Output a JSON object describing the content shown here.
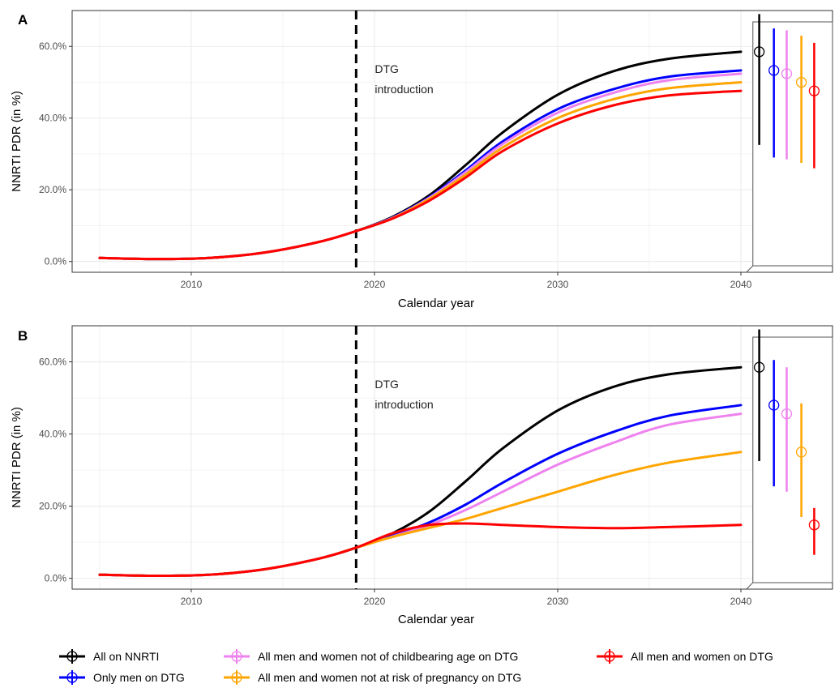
{
  "colors": {
    "all_on_nnrti": "#000000",
    "only_men": "#0000ff",
    "not_childbearing": "#ee82ee",
    "not_at_risk": "#ffa500",
    "all_on_dtg": "#ff0000",
    "grid": "#ebebeb",
    "panel_border": "#333333"
  },
  "legend": {
    "items": [
      {
        "label": "All on NNRTI",
        "color_key": "all_on_nnrti"
      },
      {
        "label": "All men and women not of childbearing age on DTG",
        "color_key": "not_childbearing"
      },
      {
        "label": "All men and women on DTG",
        "color_key": "all_on_dtg"
      },
      {
        "label": "Only men on DTG",
        "color_key": "only_men"
      },
      {
        "label": "All men and women not at risk of pregnancy on DTG",
        "color_key": "not_at_risk"
      }
    ]
  },
  "chart_data": [
    {
      "type": "line",
      "panel": "A",
      "xlabel": "Calendar year",
      "ylabel": "NNRTI PDR (in %)",
      "xlim": [
        2003.5,
        2045
      ],
      "ylim": [
        -3,
        70
      ],
      "x_ticks": [
        2010,
        2020,
        2030,
        2040
      ],
      "x_tick_labels": [
        "2010",
        "2020",
        "2030",
        "2040"
      ],
      "y_ticks": [
        0,
        20,
        40,
        60
      ],
      "y_tick_labels": [
        "0.0%",
        "20.0%",
        "40.0%",
        "60.0%"
      ],
      "grid": true,
      "vline": {
        "x": 2019,
        "label_line1": "DTG",
        "label_line2": "introduction"
      },
      "x": [
        2005,
        2008,
        2011,
        2014,
        2017,
        2019,
        2021,
        2023,
        2025,
        2027,
        2030,
        2033,
        2036,
        2040
      ],
      "series": [
        {
          "name": "All on NNRTI",
          "color_key": "all_on_nnrti",
          "values": [
            1.0,
            0.7,
            1.0,
            2.5,
            5.5,
            8.5,
            12.5,
            18.5,
            27.0,
            36.0,
            46.5,
            53.0,
            56.5,
            58.5
          ],
          "end": {
            "mean": 58.5,
            "low": 32.5,
            "high": 69
          }
        },
        {
          "name": "Only men on DTG",
          "color_key": "only_men",
          "values": [
            1.0,
            0.7,
            1.0,
            2.5,
            5.5,
            8.5,
            12.3,
            18.0,
            25.5,
            33.5,
            42.5,
            48.0,
            51.5,
            53.3
          ],
          "end": {
            "mean": 53.3,
            "low": 29,
            "high": 65
          }
        },
        {
          "name": "All men and women not of childbearing age on DTG",
          "color_key": "not_childbearing",
          "values": [
            1.0,
            0.7,
            1.0,
            2.5,
            5.5,
            8.5,
            12.2,
            17.8,
            25.0,
            32.8,
            41.5,
            47.0,
            50.5,
            52.4
          ],
          "end": {
            "mean": 52.4,
            "low": 28.5,
            "high": 64.5
          }
        },
        {
          "name": "All men and women not at risk of pregnancy on DTG",
          "color_key": "not_at_risk",
          "values": [
            1.0,
            0.7,
            1.0,
            2.5,
            5.5,
            8.5,
            12.1,
            17.5,
            24.3,
            31.8,
            40.0,
            45.2,
            48.3,
            50.0
          ],
          "end": {
            "mean": 50.0,
            "low": 27.5,
            "high": 63
          }
        },
        {
          "name": "All men and women on DTG",
          "color_key": "all_on_dtg",
          "values": [
            1.0,
            0.7,
            1.0,
            2.5,
            5.5,
            8.5,
            12.0,
            17.0,
            23.5,
            30.8,
            38.5,
            43.5,
            46.3,
            47.6
          ],
          "end": {
            "mean": 47.6,
            "low": 26,
            "high": 61
          }
        }
      ]
    },
    {
      "type": "line",
      "panel": "B",
      "xlabel": "Calendar year",
      "ylabel": "NNRTI PDR (in %)",
      "xlim": [
        2003.5,
        2045
      ],
      "ylim": [
        -3,
        70
      ],
      "x_ticks": [
        2010,
        2020,
        2030,
        2040
      ],
      "x_tick_labels": [
        "2010",
        "2020",
        "2030",
        "2040"
      ],
      "y_ticks": [
        0,
        20,
        40,
        60
      ],
      "y_tick_labels": [
        "0.0%",
        "20.0%",
        "40.0%",
        "60.0%"
      ],
      "grid": true,
      "vline": {
        "x": 2019,
        "label_line1": "DTG",
        "label_line2": "introduction"
      },
      "x": [
        2005,
        2008,
        2011,
        2014,
        2017,
        2019,
        2021,
        2023,
        2025,
        2027,
        2030,
        2033,
        2036,
        2040
      ],
      "series": [
        {
          "name": "All on NNRTI",
          "color_key": "all_on_nnrti",
          "values": [
            1.0,
            0.7,
            1.0,
            2.5,
            5.5,
            8.5,
            12.5,
            18.5,
            27.0,
            36.0,
            46.5,
            53.0,
            56.5,
            58.5
          ],
          "end": {
            "mean": 58.5,
            "low": 32.5,
            "high": 69
          }
        },
        {
          "name": "Only men on DTG",
          "color_key": "only_men",
          "values": [
            1.0,
            0.7,
            1.0,
            2.5,
            5.5,
            8.5,
            11.8,
            15.5,
            20.5,
            26.5,
            34.5,
            40.5,
            45.0,
            48.0
          ],
          "end": {
            "mean": 48.0,
            "low": 25.5,
            "high": 60.5
          }
        },
        {
          "name": "All men and women not of childbearing age on DTG",
          "color_key": "not_childbearing",
          "values": [
            1.0,
            0.7,
            1.0,
            2.5,
            5.5,
            8.5,
            11.6,
            14.8,
            19.0,
            24.0,
            31.5,
            37.5,
            42.5,
            45.6
          ],
          "end": {
            "mean": 45.6,
            "low": 24,
            "high": 58.5
          }
        },
        {
          "name": "All men and women not at risk of pregnancy on DTG",
          "color_key": "not_at_risk",
          "values": [
            1.0,
            0.7,
            1.0,
            2.5,
            5.5,
            8.5,
            11.5,
            14.0,
            16.5,
            19.5,
            24.0,
            28.5,
            32.0,
            35.0
          ],
          "end": {
            "mean": 35.0,
            "low": 17,
            "high": 48.5
          }
        },
        {
          "name": "All men and women on DTG",
          "color_key": "all_on_dtg",
          "values": [
            1.0,
            0.7,
            1.0,
            2.5,
            5.5,
            8.5,
            12.5,
            14.8,
            15.2,
            14.8,
            14.2,
            13.9,
            14.2,
            14.8
          ],
          "end": {
            "mean": 14.8,
            "low": 6.5,
            "high": 19.5
          }
        }
      ]
    }
  ]
}
